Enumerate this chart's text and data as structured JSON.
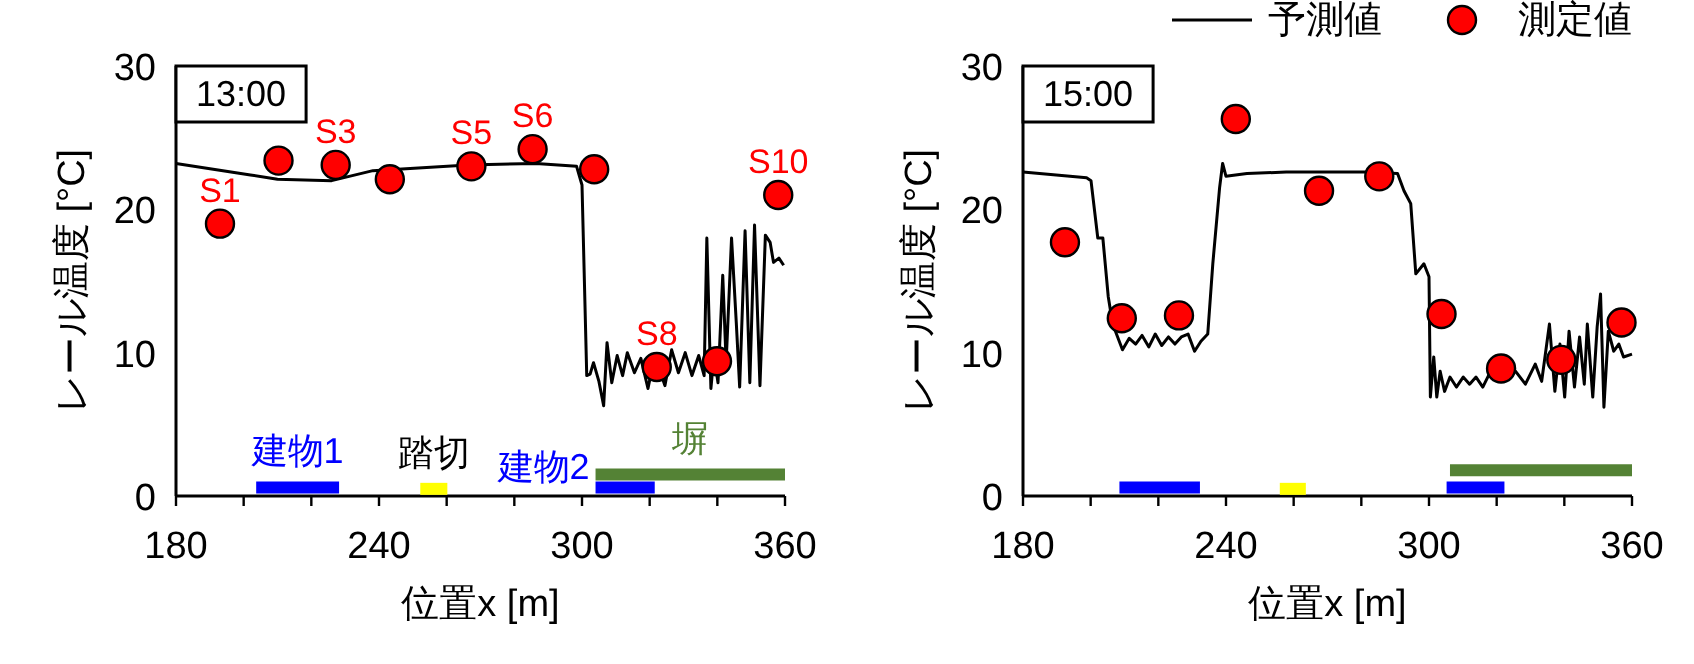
{
  "chart_data": [
    {
      "type": "line",
      "title": "13:00",
      "xlabel": "位置x [m]",
      "ylabel": "レール温度 [°C]",
      "xlim": [
        180,
        360
      ],
      "ylim": [
        0,
        30
      ],
      "xticks": [
        180,
        {
          "value": 200,
          "label": null
        },
        {
          "value": 220,
          "label": null
        },
        240,
        {
          "value": 260,
          "label": null
        },
        {
          "value": 280,
          "label": null
        },
        300,
        {
          "value": 320,
          "label": null
        },
        {
          "value": 340,
          "label": null
        },
        360
      ],
      "yticks": [
        0,
        10,
        20,
        30
      ],
      "grid": false,
      "legend": false,
      "series": [
        {
          "color": "#000000",
          "x": [
            180,
            202,
            210,
            226,
            238.2,
            266.3,
            286.4,
            298.4,
            300,
            301.4,
            302.4,
            303.4,
            305,
            306.4,
            307.4,
            308.8,
            310.4,
            312,
            313.4,
            315.5,
            317.4,
            319.5,
            321.5,
            324.5,
            326.5,
            328.5,
            330.5,
            332.5,
            334.5,
            336.1,
            336.9,
            338.1,
            339,
            340.2,
            341.6,
            342.6,
            344.2,
            345.6,
            346.6,
            348.2,
            349.6,
            351,
            352.6,
            354.2,
            355.6,
            356.6,
            358.2,
            359.6
          ],
          "values": [
            23.2,
            22.4,
            22.1,
            22.0,
            22.7,
            23.1,
            23.2,
            23.0,
            21.7,
            8.4,
            8.5,
            9.3,
            8.0,
            6.3,
            10.7,
            7.9,
            9.8,
            8.4,
            10.0,
            8.6,
            9.6,
            7.5,
            9.8,
            7.7,
            10.2,
            8.6,
            10.0,
            8.4,
            9.8,
            8.4,
            18.0,
            7.5,
            9.8,
            7.9,
            15.4,
            9.3,
            18.0,
            12.1,
            7.6,
            18.5,
            7.9,
            18.9,
            7.7,
            18.2,
            17.7,
            16.3,
            16.6,
            16.1
          ]
        },
        {
          "type": "scatter",
          "marker": "circle",
          "color": "#ff0000",
          "x": [
            193,
            210.3,
            227.2,
            243.2,
            267.3,
            285.4,
            303.6,
            322.1,
            339.9,
            358
          ],
          "values": [
            19.0,
            23.4,
            23.1,
            22.1,
            23.0,
            24.2,
            22.8,
            9.0,
            9.4,
            21.0
          ],
          "value_labels": [
            "S1",
            null,
            "S3",
            null,
            "S5",
            "S6",
            null,
            "S8",
            null,
            "S10"
          ]
        },
        {
          "name": "建物1",
          "color": "#0000ff",
          "x": [
            203.7,
            228.2
          ],
          "values": [
            0.6,
            0.6
          ]
        },
        {
          "name": "踏切",
          "color": "#ffff00",
          "x": [
            252.2,
            260.2
          ],
          "values": [
            0.5,
            0.5
          ]
        },
        {
          "name": "建物2",
          "color": "#0000ff",
          "x": [
            304,
            321.5
          ],
          "values": [
            0.6,
            0.6
          ]
        },
        {
          "name": "塀",
          "color": "#548235",
          "x": [
            304,
            360
          ],
          "values": [
            1.5,
            1.5
          ]
        }
      ]
    },
    {
      "type": "line",
      "title": "15:00",
      "xlabel": "位置x [m]",
      "ylabel": "レール温度 [°C]",
      "xlim": [
        180,
        360
      ],
      "ylim": [
        0,
        30
      ],
      "xticks": [
        180,
        {
          "value": 200,
          "label": null
        },
        {
          "value": 220,
          "label": null
        },
        240,
        {
          "value": 260,
          "label": null
        },
        {
          "value": 280,
          "label": null
        },
        300,
        {
          "value": 320,
          "label": null
        },
        {
          "value": 340,
          "label": null
        },
        360
      ],
      "yticks": [
        0,
        10,
        20,
        30
      ],
      "grid": false,
      "legend": "top right",
      "series": [
        {
          "name": "予測値",
          "color": "#000000",
          "x": [
            180,
            198.8,
            200.1,
            202.1,
            203.6,
            205.2,
            206.5,
            209.4,
            211.4,
            213.3,
            215.2,
            217.2,
            219.1,
            221,
            223,
            224.9,
            226.8,
            228.8,
            230.7,
            232.6,
            234.6,
            236.1,
            238.1,
            239,
            240,
            246.2,
            257.8,
            281,
            290.7,
            292.6,
            294.6,
            296.1,
            298.5,
            300,
            300.4,
            301.4,
            302.3,
            303.3,
            304.6,
            306.2,
            308.1,
            310.1,
            312,
            313.9,
            315.9,
            317.8,
            321.7,
            325.6,
            328.5,
            331.4,
            333.3,
            335.6,
            337.2,
            338.7,
            340.1,
            341.4,
            343,
            344.5,
            345.9,
            346.8,
            348.4,
            349.7,
            350.7,
            351.7,
            353,
            354.6,
            356.1,
            357.5,
            360
          ],
          "values": [
            22.6,
            22.2,
            22.0,
            18.0,
            18.0,
            13.9,
            12.0,
            10.2,
            11.0,
            10.6,
            11.2,
            10.4,
            11.3,
            10.5,
            11.1,
            10.6,
            11.1,
            11.3,
            10.1,
            10.8,
            11.3,
            16.2,
            21.5,
            23.2,
            22.3,
            22.5,
            22.6,
            22.6,
            22.5,
            21.3,
            20.4,
            15.5,
            16.2,
            15.3,
            6.9,
            9.7,
            6.9,
            8.7,
            7.3,
            8.3,
            7.6,
            8.3,
            7.8,
            8.3,
            7.6,
            8.5,
            8.0,
            8.7,
            7.8,
            9.2,
            8.0,
            12.0,
            7.3,
            10.6,
            6.9,
            11.5,
            7.6,
            11.1,
            7.8,
            12.0,
            6.9,
            11.8,
            14.1,
            6.2,
            11.5,
            10.1,
            10.6,
            9.7,
            9.9
          ]
        },
        {
          "type": "scatter",
          "marker": "circle",
          "name": "測定値",
          "color": "#ff0000",
          "x": [
            192.4,
            209.2,
            226.1,
            242.9,
            267.5,
            285.3,
            303.7,
            321.3,
            339.1,
            356.9
          ],
          "values": [
            17.7,
            12.4,
            12.6,
            26.3,
            21.3,
            22.3,
            12.7,
            8.9,
            9.5,
            12.1
          ]
        },
        {
          "color": "#0000ff",
          "x": [
            208.5,
            232.3
          ],
          "values": [
            0.6,
            0.6
          ]
        },
        {
          "color": "#ffff00",
          "x": [
            255.9,
            263.6
          ],
          "values": [
            0.5,
            0.5
          ]
        },
        {
          "color": "#0000ff",
          "x": [
            305.2,
            322.3
          ],
          "values": [
            0.6,
            0.6
          ]
        },
        {
          "color": "#548235",
          "x": [
            306.2,
            360
          ],
          "values": [
            1.8,
            1.8
          ]
        }
      ]
    }
  ]
}
